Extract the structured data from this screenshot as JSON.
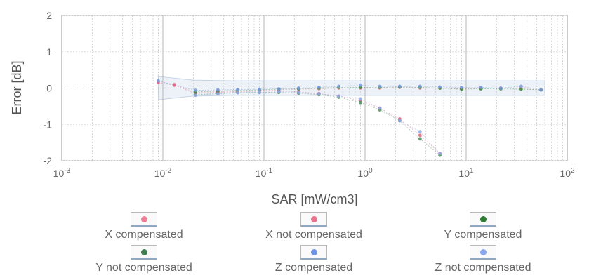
{
  "chart_data": {
    "type": "scatter",
    "xlabel": "SAR [mW/cm3]",
    "ylabel": "Error [dB]",
    "x_scale": "log",
    "xlim": [
      0.001,
      100
    ],
    "ylim": [
      -2,
      2
    ],
    "x_ticks": [
      {
        "base": "10",
        "exp": "-3",
        "value": 0.001
      },
      {
        "base": "10",
        "exp": "-2",
        "value": 0.01
      },
      {
        "base": "10",
        "exp": "-1",
        "value": 0.1
      },
      {
        "base": "10",
        "exp": "0",
        "value": 1
      },
      {
        "base": "10",
        "exp": "1",
        "value": 10
      },
      {
        "base": "10",
        "exp": "2",
        "value": 100
      }
    ],
    "y_ticks": [
      {
        "label": "2",
        "value": 2
      },
      {
        "label": "1",
        "value": 1
      },
      {
        "label": "0",
        "value": 0
      },
      {
        "label": "-1",
        "value": -1
      },
      {
        "label": "-2",
        "value": -2
      }
    ],
    "grid": true,
    "uncertainty_band": {
      "x": [
        0.009,
        0.02,
        0.05,
        0.1,
        0.3,
        1,
        3,
        10,
        30,
        60
      ],
      "upper": [
        0.32,
        0.22,
        0.2,
        0.2,
        0.2,
        0.2,
        0.2,
        0.2,
        0.2,
        0.2
      ],
      "lower": [
        -0.32,
        -0.22,
        -0.2,
        -0.2,
        -0.2,
        -0.2,
        -0.2,
        -0.2,
        -0.2,
        -0.2
      ]
    },
    "series": [
      {
        "name": "X compensated",
        "color": "#e88aa0",
        "x": [
          0.009,
          0.013,
          0.021,
          0.035,
          0.055,
          0.09,
          0.14,
          0.22,
          0.35,
          0.55,
          0.9,
          1.4,
          2.2,
          3.5,
          5.5,
          9,
          14,
          22,
          35,
          55
        ],
        "y": [
          0.18,
          0.1,
          -0.12,
          -0.1,
          -0.08,
          -0.07,
          -0.05,
          -0.03,
          -0.02,
          0.0,
          0.0,
          0.0,
          0.02,
          0.0,
          0.0,
          -0.02,
          0.0,
          0.0,
          0.0,
          -0.05
        ]
      },
      {
        "name": "X not compensated",
        "color": "#e0607e",
        "x": [
          0.009,
          0.013,
          0.021,
          0.035,
          0.055,
          0.09,
          0.14,
          0.22,
          0.35,
          0.55,
          0.9,
          1.4,
          2.2,
          3.5,
          5.5
        ],
        "y": [
          0.15,
          0.08,
          -0.15,
          -0.12,
          -0.1,
          -0.08,
          -0.08,
          -0.1,
          -0.15,
          -0.22,
          -0.35,
          -0.55,
          -0.85,
          -1.3,
          -1.8
        ]
      },
      {
        "name": "Y compensated",
        "color": "#3a8a3a",
        "x": [
          0.021,
          0.035,
          0.055,
          0.09,
          0.14,
          0.22,
          0.35,
          0.55,
          0.9,
          1.4,
          2.2,
          3.5,
          5.5,
          9,
          14,
          22,
          35,
          55
        ],
        "y": [
          -0.1,
          -0.08,
          -0.06,
          -0.05,
          -0.03,
          -0.02,
          0.0,
          0.02,
          0.02,
          0.02,
          0.03,
          0.02,
          0.0,
          -0.03,
          -0.02,
          -0.02,
          -0.03,
          -0.05
        ]
      },
      {
        "name": "Y not compensated",
        "color": "#4f8f5a",
        "x": [
          0.021,
          0.035,
          0.055,
          0.09,
          0.14,
          0.22,
          0.35,
          0.55,
          0.9,
          1.4,
          2.2,
          3.5,
          5.5
        ],
        "y": [
          -0.18,
          -0.15,
          -0.12,
          -0.12,
          -0.12,
          -0.14,
          -0.18,
          -0.25,
          -0.4,
          -0.6,
          -0.9,
          -1.4,
          -1.85
        ]
      },
      {
        "name": "Z compensated",
        "color": "#7a9be0",
        "x": [
          0.009,
          0.021,
          0.035,
          0.055,
          0.09,
          0.14,
          0.22,
          0.35,
          0.55,
          0.9,
          1.4,
          2.2,
          3.5,
          5.5,
          9,
          14,
          22,
          35,
          55
        ],
        "y": [
          0.2,
          -0.06,
          -0.05,
          -0.04,
          -0.03,
          -0.02,
          0.0,
          0.02,
          0.05,
          0.08,
          0.05,
          0.05,
          0.05,
          0.03,
          0.02,
          0.02,
          0.0,
          0.05,
          -0.05
        ]
      },
      {
        "name": "Z not compensated",
        "color": "#92a9e8",
        "x": [
          0.021,
          0.035,
          0.055,
          0.09,
          0.14,
          0.22,
          0.35,
          0.55,
          0.9,
          1.4,
          2.2,
          3.5,
          5.5
        ],
        "y": [
          -0.2,
          -0.16,
          -0.13,
          -0.12,
          -0.1,
          -0.12,
          -0.16,
          -0.22,
          -0.3,
          -0.55,
          -0.9,
          -1.2,
          -1.8
        ]
      }
    ],
    "legend": {
      "placement": "bottom",
      "items": [
        {
          "label": "X compensated",
          "color": "#f08098"
        },
        {
          "label": "X not compensated",
          "color": "#e8738f"
        },
        {
          "label": "Y compensated",
          "color": "#2e7d32"
        },
        {
          "label": "Y not compensated",
          "color": "#3f7f4f"
        },
        {
          "label": "Z compensated",
          "color": "#6f94e8"
        },
        {
          "label": "Z not compensated",
          "color": "#8aa6ee"
        }
      ]
    }
  }
}
